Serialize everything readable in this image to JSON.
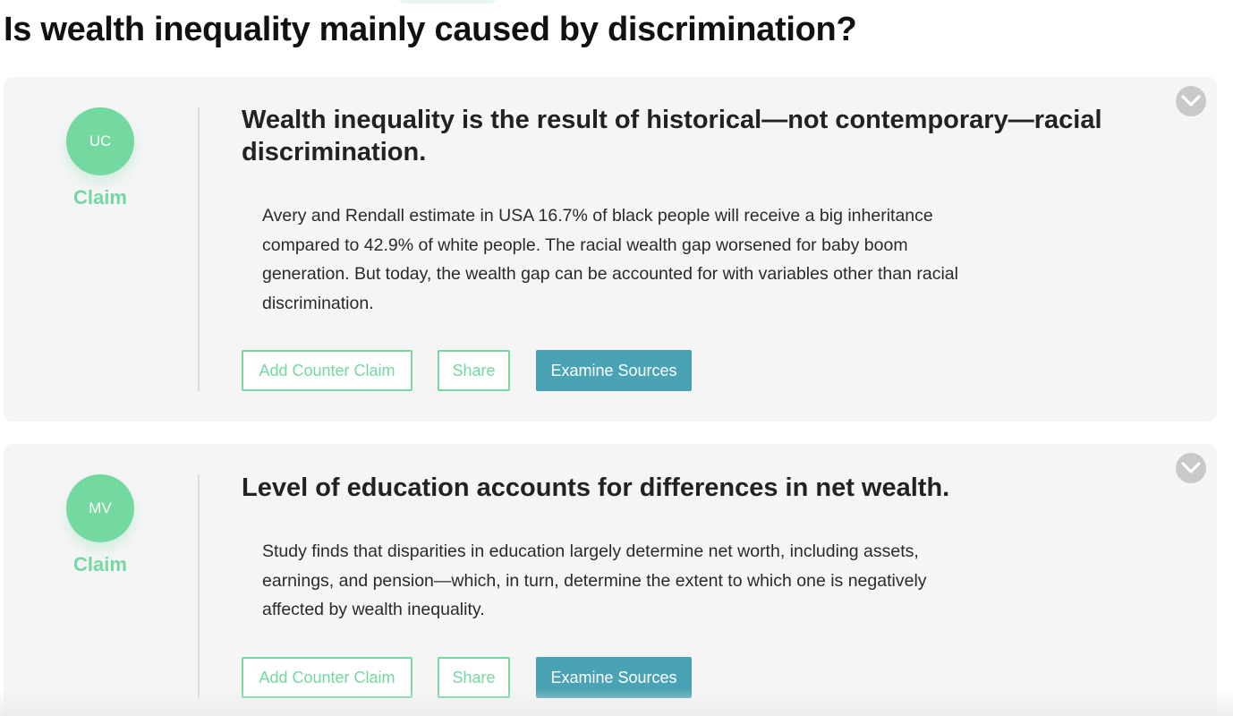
{
  "page": {
    "title": "Is wealth inequality mainly caused by discrimination?"
  },
  "claims": [
    {
      "initials": "UC",
      "type": "Claim",
      "title": "Wealth inequality is the result of historical—not contemporary—racial discrimination.",
      "body": "Avery and Rendall estimate in USA 16.7% of black people will receive a big inheritance compared to 42.9% of white people. The racial wealth gap worsened for baby boom generation. But today, the wealth gap can be accounted for with variables other than racial discrimination.",
      "actions": {
        "counter_label": "Add Counter Claim",
        "share_label": "Share",
        "sources_label": "Examine Sources"
      }
    },
    {
      "initials": "MV",
      "type": "Claim",
      "title": "Level of education accounts for differences in net wealth.",
      "body": "Study finds that disparities in education largely determine net worth, including assets, earnings, and pension—which, in turn, determine the extent to which one is negatively affected by wealth inequality.",
      "actions": {
        "counter_label": "Add Counter Claim",
        "share_label": "Share",
        "sources_label": "Examine Sources"
      }
    }
  ],
  "icons": {
    "collapse": "chevron-down-icon"
  },
  "colors": {
    "accent_green": "#74d8a1",
    "sources_blue": "#4aa3b5",
    "card_background": "#f5f5f5",
    "collapse_gray": "#c9c9c9"
  }
}
